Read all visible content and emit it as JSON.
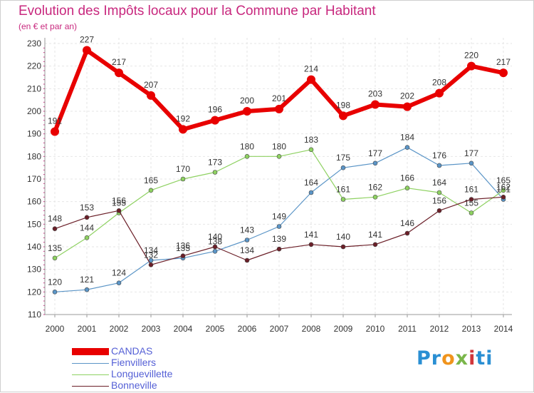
{
  "header": {
    "title": "Evolution des Impôts locaux pour la Commune par Habitant",
    "subtitle": "(en € et par an)"
  },
  "chart_data": {
    "type": "line",
    "title": "Evolution des Impôts locaux pour la Commune par Habitant",
    "subtitle": "(en € et par an)",
    "xlabel": "",
    "ylabel": "",
    "x": [
      "2000",
      "2001",
      "2002",
      "2003",
      "2004",
      "2005",
      "2006",
      "2007",
      "2008",
      "2009",
      "2010",
      "2011",
      "2012",
      "2013",
      "2014"
    ],
    "ylim": [
      110,
      230
    ],
    "yticks": [
      110,
      120,
      130,
      140,
      150,
      160,
      170,
      180,
      190,
      200,
      210,
      220,
      230
    ],
    "grid": true,
    "legend_position": "bottom-left",
    "series": [
      {
        "name": "CANDAS",
        "color": "#e80000",
        "emphasis": true,
        "values": [
          191,
          227,
          217,
          207,
          192,
          196,
          200,
          201,
          214,
          198,
          203,
          202,
          208,
          220,
          217
        ]
      },
      {
        "name": "Fienvillers",
        "color": "#5b95c7",
        "values": [
          120,
          121,
          124,
          134,
          135,
          138,
          143,
          149,
          164,
          175,
          177,
          184,
          176,
          177,
          161
        ]
      },
      {
        "name": "Longuevillette",
        "color": "#8ed161",
        "values": [
          135,
          144,
          155,
          165,
          170,
          173,
          180,
          180,
          183,
          161,
          162,
          166,
          164,
          155,
          165
        ]
      },
      {
        "name": "Bonneville",
        "color": "#6b1f28",
        "values": [
          148,
          153,
          156,
          132,
          136,
          140,
          134,
          139,
          141,
          140,
          141,
          146,
          156,
          161,
          162
        ]
      }
    ]
  },
  "legend": {
    "items": [
      {
        "label": "CANDAS",
        "color": "#e80000"
      },
      {
        "label": "Fienvillers",
        "color": "#5b95c7"
      },
      {
        "label": "Longuevillette",
        "color": "#8ed161"
      },
      {
        "label": "Bonneville",
        "color": "#6b1f28"
      }
    ]
  },
  "brand": {
    "logo_text": "Proxiti",
    "logo_chars": [
      "Pr",
      "o",
      "x",
      "i",
      "ti"
    ]
  }
}
